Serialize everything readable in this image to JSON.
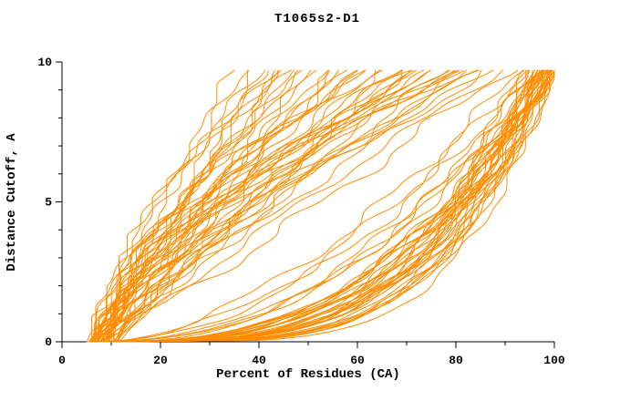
{
  "chart_data": {
    "type": "line",
    "title": "T1065s2-D1",
    "xlabel": "Percent of Residues (CA)",
    "ylabel": "Distance Cutoff, A",
    "xlim": [
      0,
      100
    ],
    "ylim": [
      0,
      10
    ],
    "x_ticks": [
      0,
      20,
      40,
      60,
      80,
      100
    ],
    "y_ticks": [
      0,
      5,
      10
    ],
    "x_minor_step": 10,
    "y_minor_step": 1,
    "grid": "off",
    "legend": "none",
    "line_color": "#ff8c00",
    "axis_color": "#000000",
    "y_curve_max": 9.7,
    "curve_params": [
      "x_start_percent",
      "x_at_top_percent",
      "shape_exponent",
      "wiggle_amplitude"
    ],
    "curves": [
      [
        5.5,
        35,
        1.0,
        1.6
      ],
      [
        6,
        37,
        1.3,
        1.2
      ],
      [
        5,
        39,
        0.9,
        1.8
      ],
      [
        7,
        41,
        1.5,
        1.4
      ],
      [
        6.5,
        43,
        1.1,
        1.7
      ],
      [
        8,
        45,
        1.2,
        1.3
      ],
      [
        5.8,
        47,
        0.85,
        1.9
      ],
      [
        7.5,
        49,
        1.4,
        1.2
      ],
      [
        6.2,
        51,
        1.0,
        1.6
      ],
      [
        8.5,
        53,
        1.15,
        1.4
      ],
      [
        5.4,
        55,
        0.8,
        1.8
      ],
      [
        7.8,
        57,
        1.25,
        1.3
      ],
      [
        6.8,
        44,
        1.6,
        1.5
      ],
      [
        9,
        48,
        1.35,
        1.1
      ],
      [
        6,
        40,
        0.9,
        1.7
      ],
      [
        7.2,
        52,
        1.5,
        1.2
      ],
      [
        5.6,
        46,
        1.05,
        1.9
      ],
      [
        8.2,
        54,
        0.95,
        1.4
      ],
      [
        6.4,
        58,
        1.3,
        1.6
      ],
      [
        7,
        42,
        1.0,
        1.8
      ],
      [
        6,
        60,
        1.5,
        1.8
      ],
      [
        8,
        62,
        1.2,
        1.6
      ],
      [
        10,
        64,
        1.7,
        1.4
      ],
      [
        7,
        66,
        1.0,
        2.0
      ],
      [
        9,
        68,
        1.4,
        1.7
      ],
      [
        11,
        70,
        1.1,
        1.5
      ],
      [
        6.5,
        72,
        1.6,
        1.9
      ],
      [
        8.5,
        74,
        1.3,
        1.6
      ],
      [
        10.5,
        76,
        1.8,
        1.3
      ],
      [
        7.5,
        78,
        1.0,
        2.1
      ],
      [
        9.5,
        80,
        1.5,
        1.7
      ],
      [
        11.5,
        82,
        1.2,
        1.5
      ],
      [
        6.8,
        84,
        1.7,
        1.8
      ],
      [
        8.8,
        86,
        1.1,
        1.6
      ],
      [
        10.8,
        88,
        1.4,
        1.4
      ],
      [
        7.2,
        90,
        0.9,
        2.0
      ],
      [
        9.2,
        61,
        1.6,
        1.6
      ],
      [
        11.2,
        65,
        1.3,
        1.5
      ],
      [
        6.2,
        69,
        1.0,
        1.9
      ],
      [
        8.4,
        73,
        1.5,
        1.6
      ],
      [
        10.4,
        77,
        1.2,
        1.4
      ],
      [
        7.6,
        81,
        1.7,
        1.8
      ],
      [
        9.6,
        85,
        1.4,
        1.5
      ],
      [
        11.6,
        89,
        1.1,
        1.3
      ],
      [
        6.6,
        63,
        1.8,
        1.7
      ],
      [
        8.6,
        67,
        1.0,
        1.9
      ],
      [
        10.6,
        71,
        1.5,
        1.5
      ],
      [
        7.4,
        75,
        1.2,
        1.7
      ],
      [
        9.4,
        79,
        1.6,
        1.5
      ],
      [
        11.4,
        83,
        1.3,
        1.4
      ],
      [
        5,
        97,
        0.3,
        1.2
      ],
      [
        6,
        98,
        0.26,
        1.0
      ],
      [
        7,
        99,
        0.34,
        1.4
      ],
      [
        8,
        100,
        0.24,
        1.1
      ],
      [
        9,
        97.5,
        0.38,
        1.3
      ],
      [
        10,
        98.5,
        0.28,
        1.0
      ],
      [
        11,
        99.5,
        0.32,
        1.2
      ],
      [
        12,
        100,
        0.22,
        0.9
      ],
      [
        5.5,
        96,
        0.42,
        1.4
      ],
      [
        6.5,
        97,
        0.27,
        1.1
      ],
      [
        7.5,
        98,
        0.36,
        1.3
      ],
      [
        8.5,
        99,
        0.25,
        1.0
      ],
      [
        9.5,
        100,
        0.4,
        1.2
      ],
      [
        10.5,
        96.5,
        0.3,
        1.1
      ],
      [
        11.5,
        97.5,
        0.23,
        0.9
      ],
      [
        6.2,
        98.5,
        0.44,
        1.3
      ],
      [
        7.8,
        99.5,
        0.29,
        1.0
      ],
      [
        9.8,
        100,
        0.35,
        1.2
      ],
      [
        5.8,
        95,
        0.5,
        1.5
      ],
      [
        8.2,
        96,
        0.27,
        1.1
      ],
      [
        10.2,
        97,
        0.38,
        1.2
      ],
      [
        12,
        98,
        0.24,
        0.9
      ],
      [
        6.8,
        99,
        0.33,
        1.3
      ],
      [
        8.8,
        100,
        0.26,
        1.0
      ],
      [
        10.8,
        95.5,
        0.45,
        1.3
      ],
      [
        5.2,
        96.5,
        0.28,
        1.1
      ],
      [
        7.4,
        97.5,
        0.36,
        1.2
      ],
      [
        9.4,
        98.5,
        0.23,
        0.9
      ],
      [
        11.4,
        99.5,
        0.41,
        1.3
      ],
      [
        6.4,
        100,
        0.27,
        1.0
      ],
      [
        8.6,
        94,
        0.55,
        1.5
      ],
      [
        10.6,
        95,
        0.31,
        1.2
      ],
      [
        5.6,
        96,
        0.25,
        1.0
      ],
      [
        7.6,
        97,
        0.47,
        1.4
      ],
      [
        9.6,
        98,
        0.28,
        1.1
      ],
      [
        11.6,
        99,
        0.37,
        1.2
      ],
      [
        6.9,
        100,
        0.24,
        0.9
      ],
      [
        8.9,
        93,
        0.6,
        1.6
      ],
      [
        10.9,
        94.5,
        0.33,
        1.2
      ],
      [
        7.1,
        95.5,
        0.26,
        1.0
      ]
    ]
  }
}
